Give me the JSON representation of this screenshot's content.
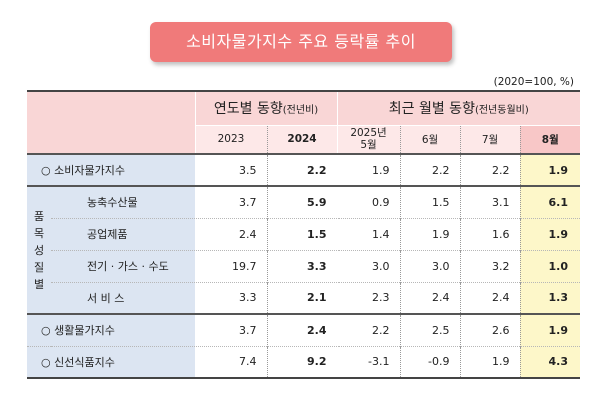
{
  "title": "소비자물가지수 주요 등락률 추이",
  "unit": "(2020=100, %)",
  "header": {
    "yearly_group": "연도별 동향",
    "yearly_group_note": "(전년비)",
    "monthly_group": "최근 월별 동향",
    "monthly_group_note": "(전년동월비)",
    "columns": [
      "2023",
      "2024",
      "2025년",
      "5월",
      "6월",
      "7월",
      "8월"
    ]
  },
  "category_label": [
    "품",
    "목",
    "성",
    "질",
    "별"
  ],
  "rows": [
    {
      "label": "○  소비자물가지수",
      "values": [
        "3.5",
        "2.2",
        "1.9",
        "2.2",
        "2.2",
        "1.9"
      ]
    },
    {
      "label": "농축수산물",
      "values": [
        "3.7",
        "5.9",
        "0.9",
        "1.5",
        "3.1",
        "6.1"
      ]
    },
    {
      "label": "공업제품",
      "values": [
        "2.4",
        "1.5",
        "1.4",
        "1.9",
        "1.6",
        "1.9"
      ]
    },
    {
      "label": "전기 · 가스 · 수도",
      "values": [
        "19.7",
        "3.3",
        "3.0",
        "3.0",
        "3.2",
        "1.0"
      ]
    },
    {
      "label": "서  비  스",
      "values": [
        "3.3",
        "2.1",
        "2.3",
        "2.4",
        "2.4",
        "1.3"
      ]
    },
    {
      "label": "○  생활물가지수",
      "values": [
        "3.7",
        "2.4",
        "2.2",
        "2.5",
        "2.6",
        "1.9"
      ]
    },
    {
      "label": "○  신선식품지수",
      "values": [
        "7.4",
        "9.2",
        "-3.1",
        "-0.9",
        "1.9",
        "4.3"
      ]
    }
  ],
  "colors": {
    "title_bg": "#f07a7a",
    "header_bg": "#f9d6d6",
    "label_bg": "#dce5f2",
    "highlight_bg": "#fdf7c9"
  }
}
